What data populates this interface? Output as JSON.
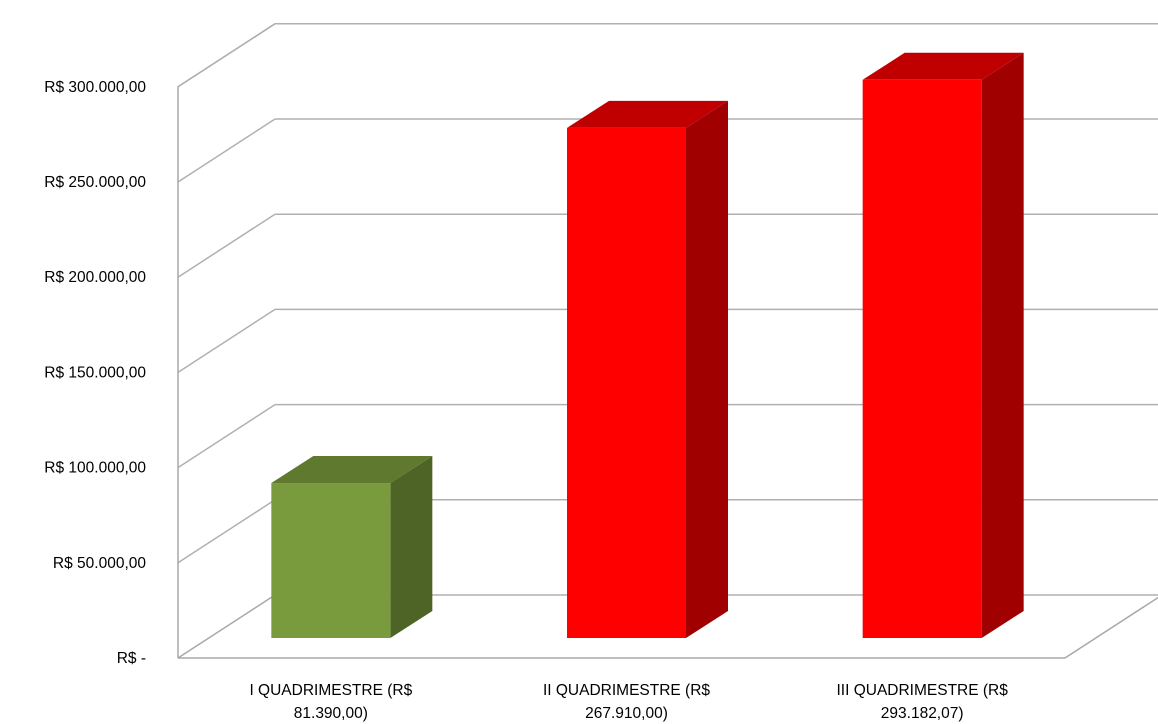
{
  "chart_data": {
    "type": "bar",
    "style": "3d-column",
    "categories": [
      [
        "I QUADRIMESTRE  (R$",
        "81.390,00)"
      ],
      [
        "II QUADRIMESTRE  (R$",
        "267.910,00)"
      ],
      [
        "III QUADRIMESTRE  (R$",
        "293.182,07)"
      ]
    ],
    "values": [
      81390.0,
      267910.0,
      293182.07
    ],
    "bar_colors": [
      {
        "front": "#7a9a3e",
        "top": "#5f7a2e",
        "side": "#4e6426"
      },
      {
        "front": "#ff0000",
        "top": "#c00000",
        "side": "#a00000"
      },
      {
        "front": "#ff0000",
        "top": "#c00000",
        "side": "#a00000"
      }
    ],
    "y_ticks": [
      {
        "value": 0,
        "label": "R$ -"
      },
      {
        "value": 50000,
        "label": "R$ 50.000,00"
      },
      {
        "value": 100000,
        "label": "R$ 100.000,00"
      },
      {
        "value": 150000,
        "label": "R$ 150.000,00"
      },
      {
        "value": 200000,
        "label": "R$ 200.000,00"
      },
      {
        "value": 250000,
        "label": "R$ 250.000,00"
      },
      {
        "value": 300000,
        "label": "R$ 300.000,00"
      }
    ],
    "ylim": [
      0,
      300000
    ],
    "grid": true,
    "legend": "none",
    "title": "",
    "xlabel": "",
    "ylabel": ""
  }
}
